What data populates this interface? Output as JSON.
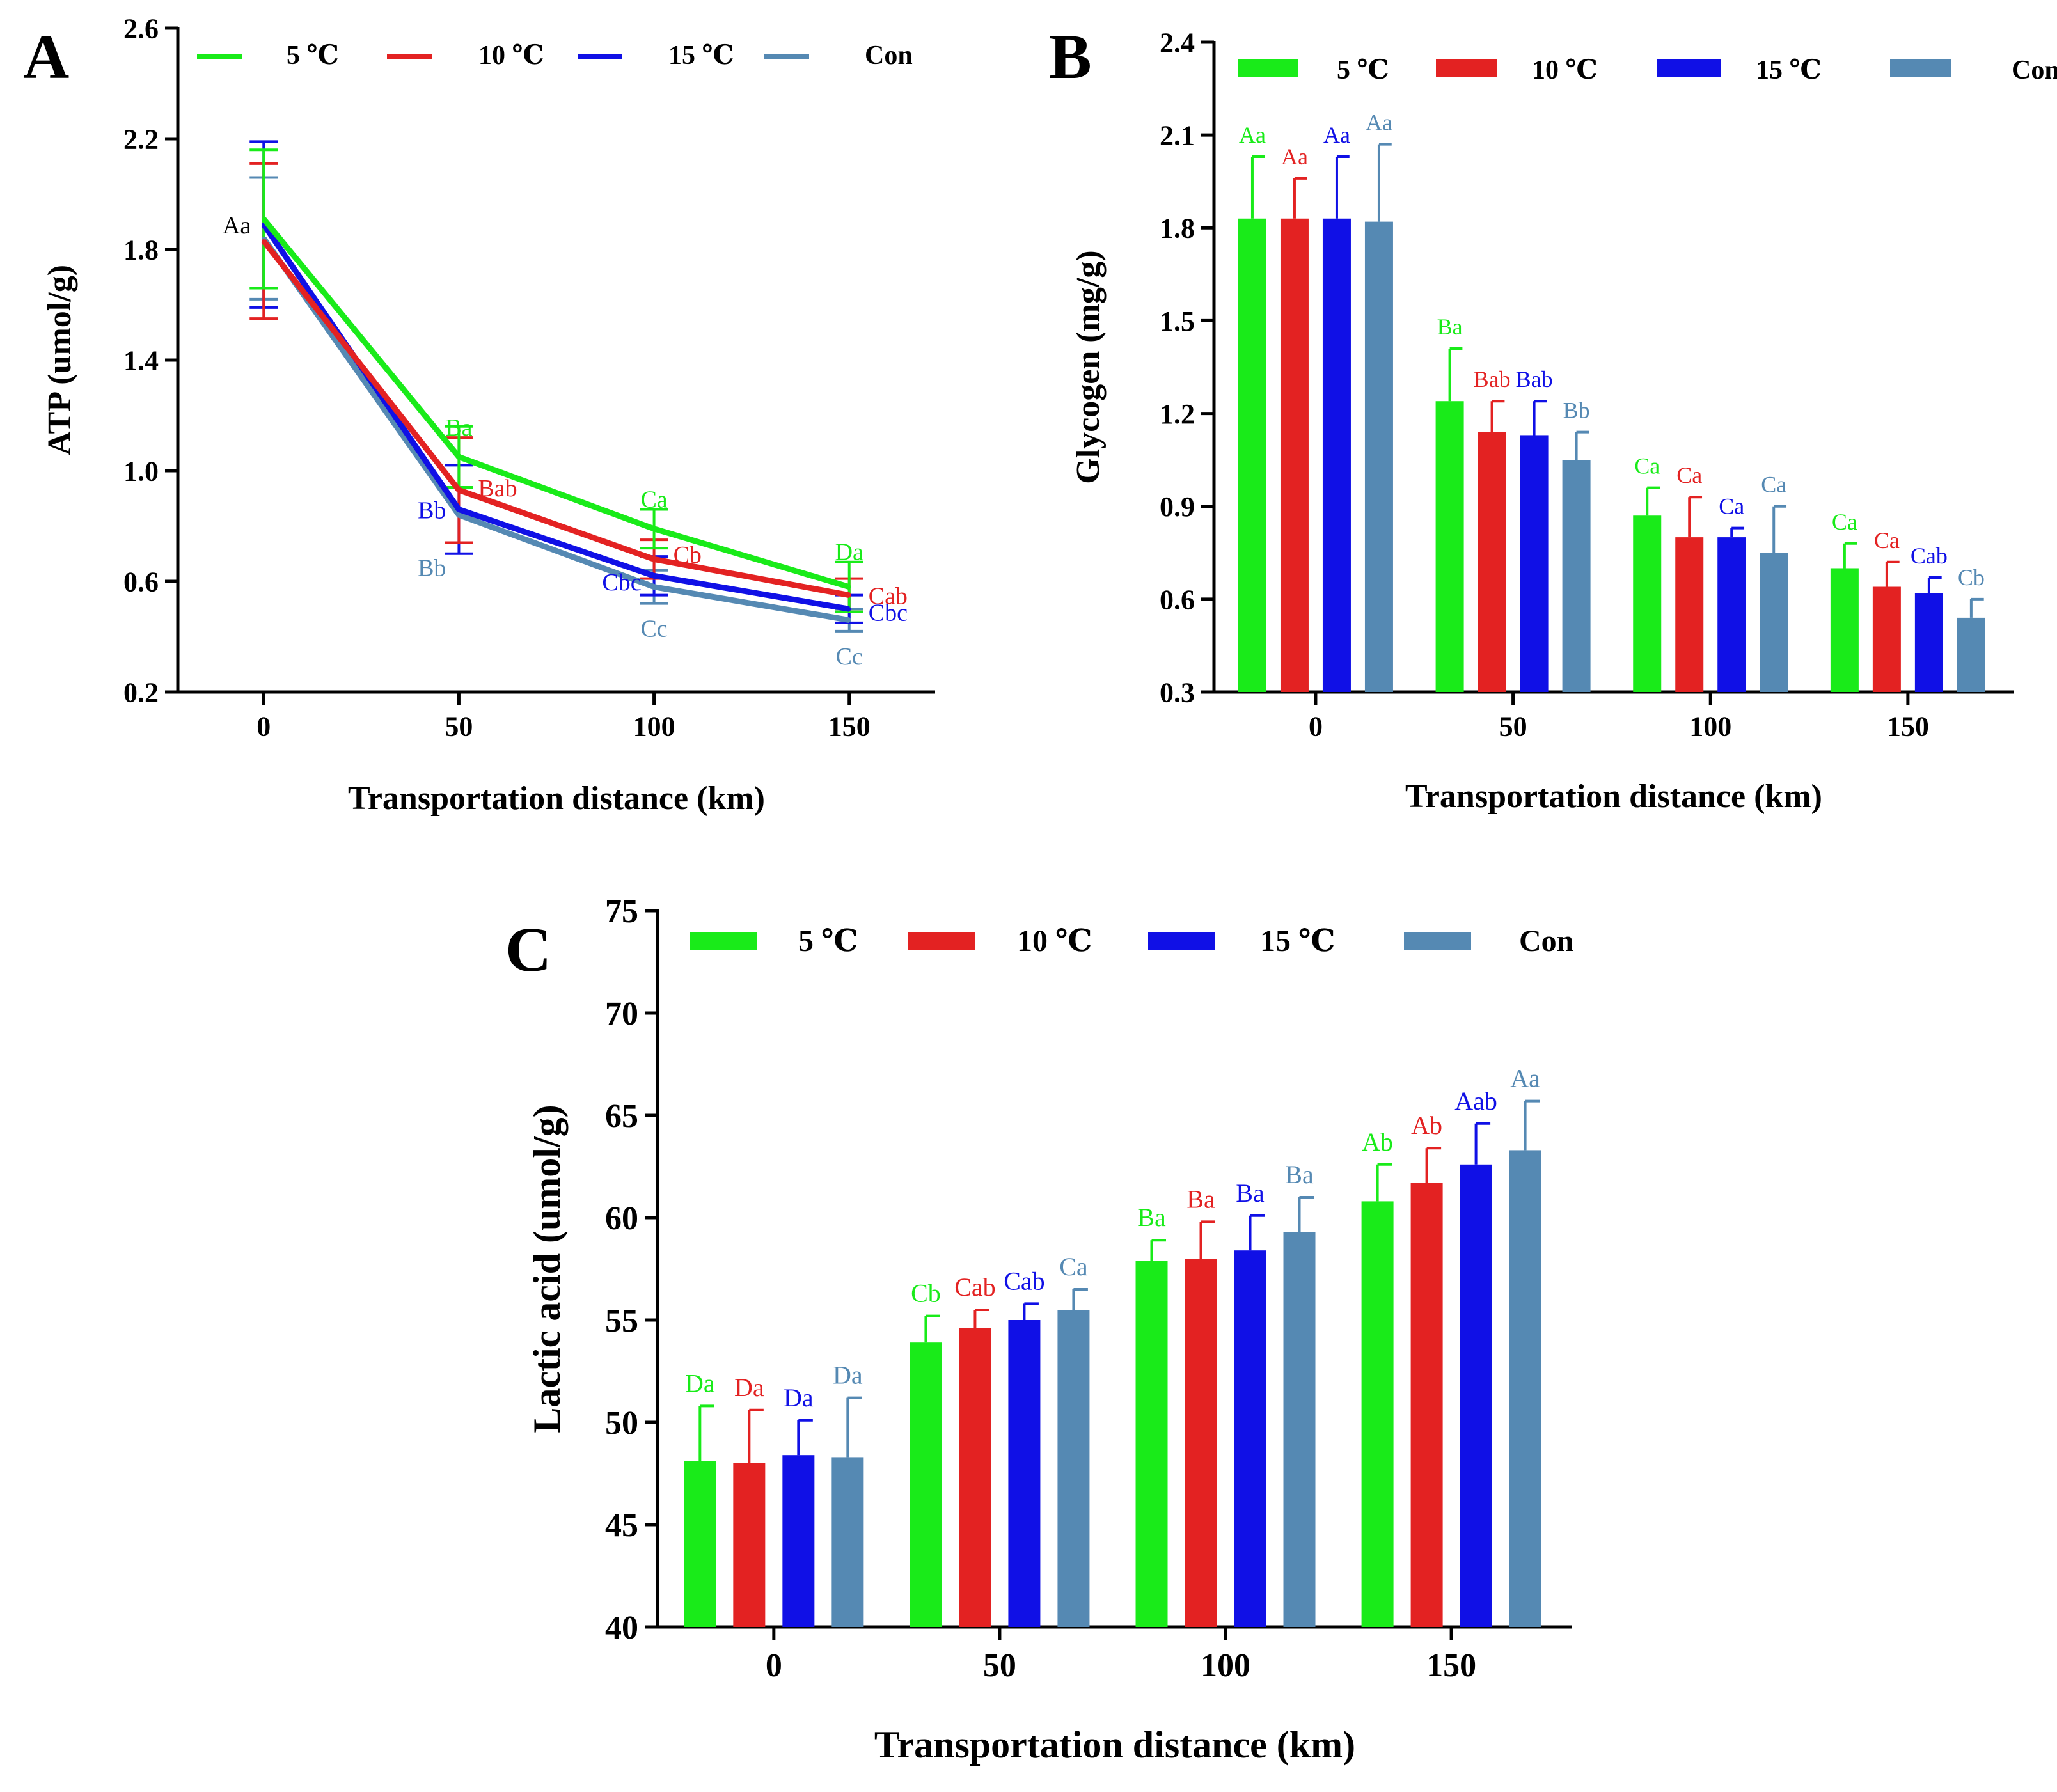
{
  "colors": {
    "5C": "#19EB19",
    "10C": "#E32222",
    "15C": "#1010E6",
    "Con": "#5589B3",
    "axis": "#000000"
  },
  "chart_data": [
    {
      "panel": "A",
      "type": "line",
      "title": "",
      "xlabel": "Transportation distance (km)",
      "ylabel": "ATP (umol/g)",
      "x": [
        0,
        50,
        100,
        150
      ],
      "xticks": [
        "0",
        "50",
        "100",
        "150"
      ],
      "xlim": [
        -22,
        172
      ],
      "ylim": [
        0.2,
        2.6
      ],
      "yticks": [
        "0.2",
        "0.6",
        "1.0",
        "1.4",
        "1.8",
        "2.2",
        "2.6"
      ],
      "legend": "top",
      "series": [
        {
          "name": "5 ℃",
          "key": "5C",
          "values": [
            1.91,
            1.05,
            0.79,
            0.58
          ],
          "errors": [
            0.25,
            0.11,
            0.07,
            0.09
          ],
          "labels": [
            "",
            "Ba",
            "Ca",
            "Da"
          ]
        },
        {
          "name": "10 ℃",
          "key": "10C",
          "values": [
            1.83,
            0.93,
            0.68,
            0.55
          ],
          "errors": [
            0.28,
            0.19,
            0.07,
            0.06
          ],
          "labels": [
            "",
            "Bab",
            "Cb",
            "Cab"
          ]
        },
        {
          "name": "15 ℃",
          "key": "15C",
          "values": [
            1.89,
            0.86,
            0.62,
            0.5
          ],
          "errors": [
            0.3,
            0.16,
            0.07,
            0.05
          ],
          "labels": [
            "",
            "Bb",
            "Cbc",
            "Cbc"
          ]
        },
        {
          "name": "Con",
          "key": "Con",
          "values": [
            1.84,
            0.84,
            0.58,
            0.46
          ],
          "errors": [
            0.22,
            0.1,
            0.06,
            0.04
          ],
          "labels": [
            "Aa",
            "Bb",
            "Cc",
            "Cc"
          ]
        }
      ]
    },
    {
      "panel": "B",
      "type": "bar",
      "title": "",
      "xlabel": "Transportation distance (km)",
      "ylabel": "Glycogen (mg/g)",
      "categories": [
        "0",
        "50",
        "100",
        "150"
      ],
      "ylim": [
        0.3,
        2.4
      ],
      "yticks": [
        "0.3",
        "0.6",
        "0.9",
        "1.2",
        "1.5",
        "1.8",
        "2.1",
        "2.4"
      ],
      "legend": "top",
      "series": [
        {
          "name": "5 ℃",
          "key": "5C",
          "values": [
            1.83,
            1.24,
            0.87,
            0.7
          ],
          "errors": [
            0.2,
            0.17,
            0.09,
            0.08
          ],
          "labels": [
            "Aa",
            "Ba",
            "Ca",
            "Ca"
          ]
        },
        {
          "name": "10 ℃",
          "key": "10C",
          "values": [
            1.83,
            1.14,
            0.8,
            0.64
          ],
          "errors": [
            0.13,
            0.1,
            0.13,
            0.08
          ],
          "labels": [
            "Aa",
            "Bab",
            "Ca",
            "Ca"
          ]
        },
        {
          "name": "15 ℃",
          "key": "15C",
          "values": [
            1.83,
            1.13,
            0.8,
            0.62
          ],
          "errors": [
            0.2,
            0.11,
            0.03,
            0.05
          ],
          "labels": [
            "Aa",
            "Bab",
            "Ca",
            "Cab"
          ]
        },
        {
          "name": "Con",
          "key": "Con",
          "values": [
            1.82,
            1.05,
            0.75,
            0.54
          ],
          "errors": [
            0.25,
            0.09,
            0.15,
            0.06
          ],
          "labels": [
            "Aa",
            "Bb",
            "Ca",
            "Cb"
          ]
        }
      ]
    },
    {
      "panel": "C",
      "type": "bar",
      "title": "",
      "xlabel": "Transportation distance (km)",
      "ylabel": "Lactic acid (umol/g)",
      "categories": [
        "0",
        "50",
        "100",
        "150"
      ],
      "ylim": [
        40,
        75
      ],
      "yticks": [
        "40",
        "45",
        "50",
        "55",
        "60",
        "65",
        "70",
        "75"
      ],
      "legend": "top",
      "series": [
        {
          "name": "5 ℃",
          "key": "5C",
          "values": [
            48.1,
            53.9,
            57.9,
            60.8
          ],
          "errors": [
            2.7,
            1.3,
            1.0,
            1.8
          ],
          "labels": [
            "Da",
            "Cb",
            "Ba",
            "Ab"
          ]
        },
        {
          "name": "10 ℃",
          "key": "10C",
          "values": [
            48.0,
            54.6,
            58.0,
            61.7
          ],
          "errors": [
            2.6,
            0.9,
            1.8,
            1.7
          ],
          "labels": [
            "Da",
            "Cab",
            "Ba",
            "Ab"
          ]
        },
        {
          "name": "15 ℃",
          "key": "15C",
          "values": [
            48.4,
            55.0,
            58.4,
            62.6
          ],
          "errors": [
            1.7,
            0.8,
            1.7,
            2.0
          ],
          "labels": [
            "Da",
            "Cab",
            "Ba",
            "Aab"
          ]
        },
        {
          "name": "Con",
          "key": "Con",
          "values": [
            48.3,
            55.5,
            59.3,
            63.3
          ],
          "errors": [
            2.9,
            1.0,
            1.7,
            2.4
          ],
          "labels": [
            "Da",
            "Ca",
            "Ba",
            "Aa"
          ]
        }
      ]
    }
  ]
}
